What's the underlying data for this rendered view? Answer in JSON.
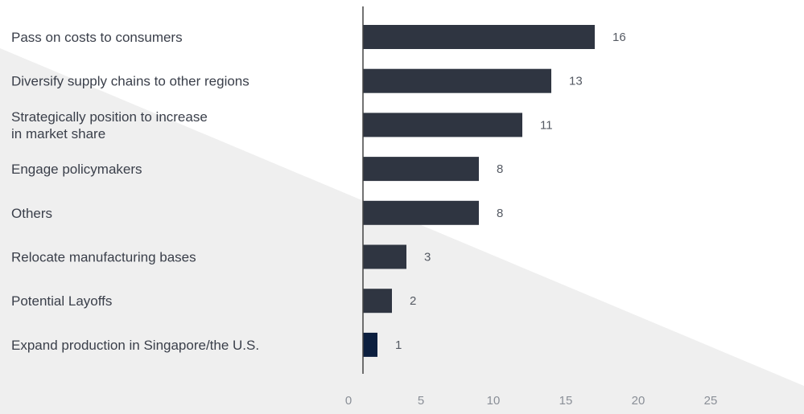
{
  "chart_data": {
    "type": "bar",
    "orientation": "horizontal",
    "categories": [
      [
        "Pass on costs to consumers"
      ],
      [
        "Diversify supply chains to other regions"
      ],
      [
        "Strategically position to increase",
        "in market share"
      ],
      [
        "Engage policymakers"
      ],
      [
        "Others"
      ],
      [
        "Relocate manufacturing bases"
      ],
      [
        "Potential Layoffs"
      ],
      [
        "Expand production in Singapore/the U.S."
      ]
    ],
    "values": [
      16,
      13,
      11,
      8,
      8,
      3,
      2,
      1
    ],
    "xlim": [
      0,
      29
    ],
    "x_ticks": [
      0,
      5,
      10,
      15,
      20,
      25
    ],
    "grid": false,
    "title": "",
    "xlabel": "",
    "ylabel": "",
    "colors": {
      "bar": "#2f3541",
      "highlight_bar": "#0c1f3f",
      "axis": "#444444",
      "background_band": "#efefef"
    },
    "highlight_index": 7
  }
}
